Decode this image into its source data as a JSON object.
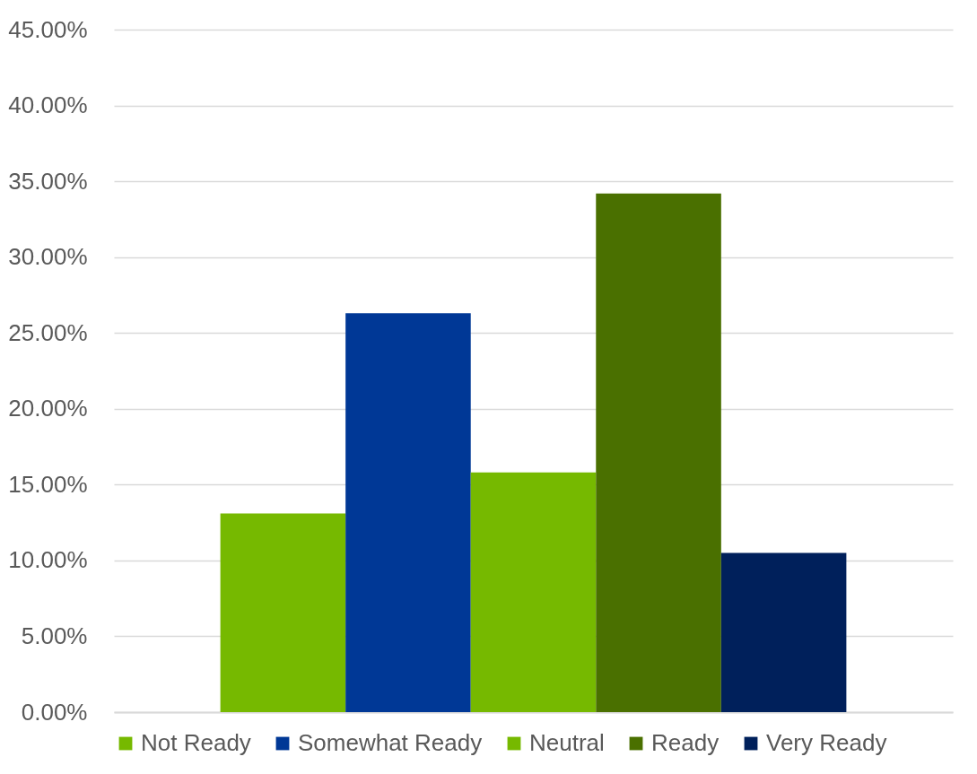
{
  "chart_data": {
    "type": "bar",
    "categories": [
      null
    ],
    "series": [
      {
        "name": "Not Ready",
        "color": "#76b900",
        "values": [
          13.1
        ]
      },
      {
        "name": "Somewhat Ready",
        "color": "#003896",
        "values": [
          26.3
        ]
      },
      {
        "name": "Neutral",
        "color": "#76b900",
        "values": [
          15.8
        ]
      },
      {
        "name": "Ready",
        "color": "#4a7000",
        "values": [
          34.2
        ]
      },
      {
        "name": "Very Ready",
        "color": "#00205b",
        "values": [
          10.5
        ]
      }
    ],
    "ylim": [
      0,
      45
    ],
    "yticks": [
      {
        "value": 0,
        "label": "0.00%"
      },
      {
        "value": 5,
        "label": "5.00%"
      },
      {
        "value": 10,
        "label": "10.00%"
      },
      {
        "value": 15,
        "label": "15.00%"
      },
      {
        "value": 20,
        "label": "20.00%"
      },
      {
        "value": 25,
        "label": "25.00%"
      },
      {
        "value": 30,
        "label": "30.00%"
      },
      {
        "value": 35,
        "label": "35.00%"
      },
      {
        "value": 40,
        "label": "40.00%"
      },
      {
        "value": 45,
        "label": "45.00%"
      }
    ],
    "grid": "y",
    "legend": "bottom",
    "tick_labels": "y"
  }
}
